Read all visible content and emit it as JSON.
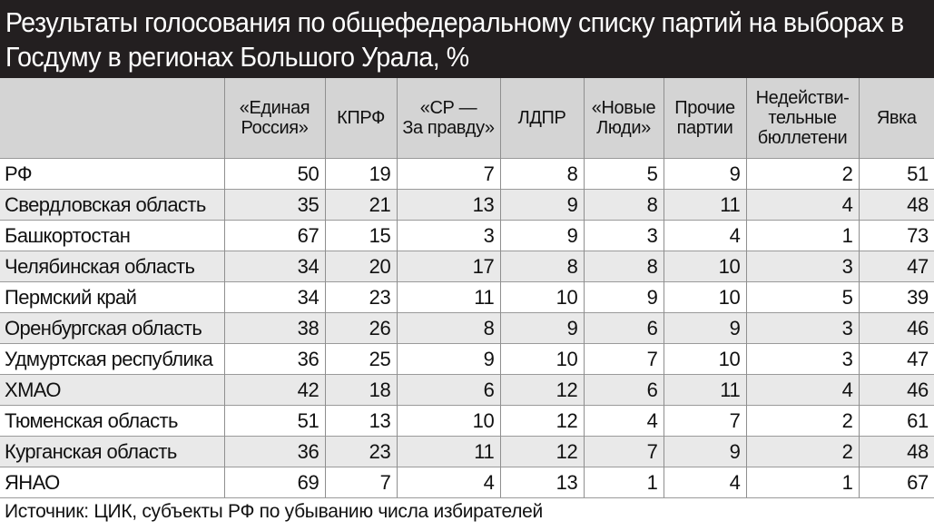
{
  "title": "Результаты голосования по общефедеральному списку партий на выборах в Госдуму  в регионах Большого Урала, %",
  "source": "Источник: ЦИК, субъекты РФ по убыванию числа избирателей",
  "columns": [
    [
      "«Единая",
      "Россия»"
    ],
    [
      "КПРФ"
    ],
    [
      "«СР —",
      "За правду»"
    ],
    [
      "ЛДПР"
    ],
    [
      "«Новые",
      "Люди»"
    ],
    [
      "Прочие",
      "партии"
    ],
    [
      "Недействи-",
      "тельные",
      "бюллетени"
    ],
    [
      "Явка"
    ]
  ],
  "rows": [
    {
      "region": "РФ",
      "values": [
        50,
        19,
        7,
        8,
        5,
        9,
        2,
        51
      ]
    },
    {
      "region": "Свердловская область",
      "values": [
        35,
        21,
        13,
        9,
        8,
        11,
        4,
        48
      ]
    },
    {
      "region": "Башкортостан",
      "values": [
        67,
        15,
        3,
        9,
        3,
        4,
        1,
        73
      ]
    },
    {
      "region": "Челябинская область",
      "values": [
        34,
        20,
        17,
        8,
        8,
        10,
        3,
        47
      ]
    },
    {
      "region": "Пермский край",
      "values": [
        34,
        23,
        11,
        10,
        9,
        10,
        5,
        39
      ]
    },
    {
      "region": "Оренбургская область",
      "values": [
        38,
        26,
        8,
        9,
        6,
        9,
        3,
        46
      ]
    },
    {
      "region": "Удмуртская республика",
      "values": [
        36,
        25,
        9,
        10,
        7,
        10,
        3,
        47
      ]
    },
    {
      "region": "ХМАО",
      "values": [
        42,
        18,
        6,
        12,
        6,
        11,
        4,
        46
      ]
    },
    {
      "region": "Тюменская область",
      "values": [
        51,
        13,
        10,
        12,
        4,
        7,
        2,
        61
      ]
    },
    {
      "region": "Курганская область",
      "values": [
        36,
        23,
        11,
        12,
        7,
        9,
        2,
        48
      ]
    },
    {
      "region": "ЯНАО",
      "values": [
        69,
        7,
        4,
        13,
        1,
        4,
        1,
        67
      ]
    }
  ],
  "chart_data": {
    "type": "table",
    "title": "Результаты голосования по общефедеральному списку партий на выборах в Госдуму  в регионах Большого Урала, %",
    "categories": [
      "РФ",
      "Свердловская область",
      "Башкортостан",
      "Челябинская область",
      "Пермский край",
      "Оренбургская область",
      "Удмуртская республика",
      "ХМАО",
      "Тюменская область",
      "Курганская область",
      "ЯНАО"
    ],
    "series": [
      {
        "name": "«Единая Россия»",
        "values": [
          50,
          35,
          67,
          34,
          34,
          38,
          36,
          42,
          51,
          36,
          69
        ]
      },
      {
        "name": "КПРФ",
        "values": [
          19,
          21,
          15,
          20,
          23,
          26,
          25,
          18,
          13,
          23,
          7
        ]
      },
      {
        "name": "«СР — За правду»",
        "values": [
          7,
          13,
          3,
          17,
          11,
          8,
          9,
          6,
          10,
          11,
          4
        ]
      },
      {
        "name": "ЛДПР",
        "values": [
          8,
          9,
          9,
          8,
          10,
          9,
          10,
          12,
          12,
          12,
          13
        ]
      },
      {
        "name": "«Новые Люди»",
        "values": [
          5,
          8,
          3,
          8,
          9,
          6,
          7,
          6,
          4,
          7,
          1
        ]
      },
      {
        "name": "Прочие партии",
        "values": [
          9,
          11,
          4,
          10,
          10,
          9,
          10,
          11,
          7,
          9,
          4
        ]
      },
      {
        "name": "Недействительные бюллетени",
        "values": [
          2,
          4,
          1,
          3,
          5,
          3,
          3,
          4,
          2,
          2,
          1
        ]
      },
      {
        "name": "Явка",
        "values": [
          51,
          48,
          73,
          47,
          39,
          46,
          47,
          46,
          61,
          48,
          67
        ]
      }
    ]
  }
}
